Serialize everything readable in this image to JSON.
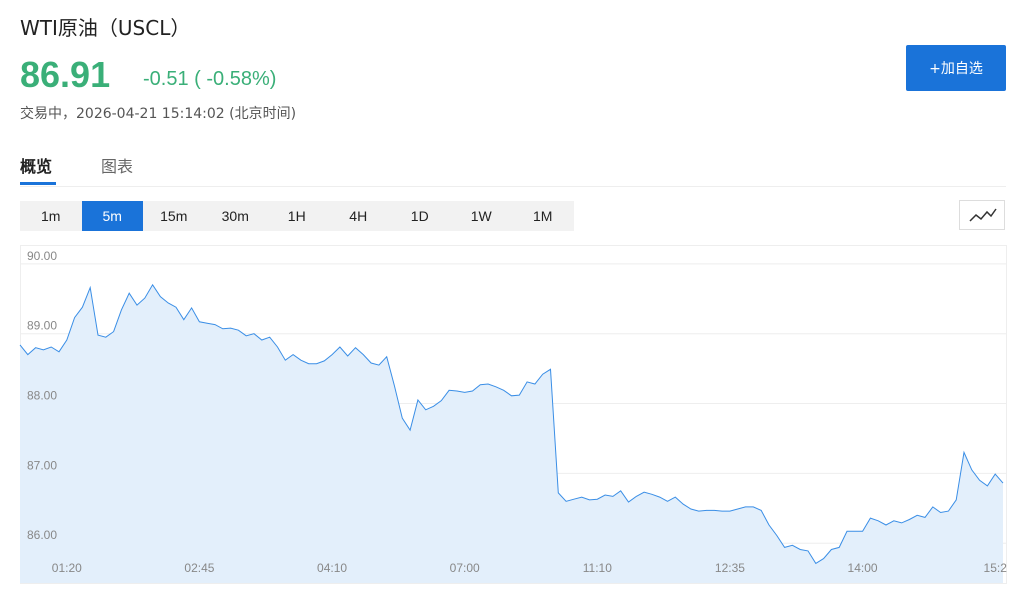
{
  "header": {
    "title": "WTI原油（USCL）",
    "price": "86.91",
    "change": "-0.51 ( -0.58%)",
    "status": "交易中，2026-04-21 15:14:02 (北京时间)"
  },
  "add_button": "+加自选",
  "tabs": [
    "概览",
    "图表"
  ],
  "intervals": [
    "1m",
    "5m",
    "15m",
    "30m",
    "1H",
    "4H",
    "1D",
    "1W",
    "1M"
  ],
  "chart_data": {
    "type": "area",
    "color": "#3a8ee6",
    "fill": "#e3effb",
    "categories": [
      null,
      null,
      null,
      null,
      null,
      null,
      "01:20",
      null,
      null,
      null,
      null,
      null,
      null,
      null,
      null,
      null,
      null,
      null,
      null,
      null,
      null,
      null,
      null,
      "02:45",
      null,
      null,
      null,
      null,
      null,
      null,
      null,
      null,
      null,
      null,
      null,
      null,
      null,
      null,
      null,
      null,
      "04:10",
      null,
      null,
      null,
      null,
      null,
      null,
      null,
      null,
      null,
      null,
      null,
      null,
      null,
      null,
      null,
      null,
      "07:00",
      null,
      null,
      null,
      null,
      null,
      null,
      null,
      null,
      null,
      null,
      null,
      null,
      null,
      null,
      null,
      null,
      "11:10",
      null,
      null,
      null,
      null,
      null,
      null,
      null,
      null,
      null,
      null,
      null,
      null,
      null,
      null,
      null,
      null,
      "12:35",
      null,
      null,
      null,
      null,
      null,
      null,
      null,
      null,
      null,
      null,
      null,
      null,
      null,
      null,
      null,
      null,
      "14:00",
      null,
      null,
      null,
      null,
      null,
      null,
      null,
      null,
      null,
      null,
      null,
      null,
      null,
      null,
      null,
      null,
      "15:2",
      null
    ],
    "values": [
      88.84,
      88.7,
      88.8,
      88.77,
      88.81,
      88.74,
      88.91,
      89.23,
      89.38,
      89.66,
      88.98,
      88.95,
      89.03,
      89.34,
      89.58,
      89.41,
      89.51,
      89.7,
      89.53,
      89.44,
      89.38,
      89.2,
      89.37,
      89.17,
      89.15,
      89.13,
      89.07,
      89.08,
      89.05,
      88.97,
      89.0,
      88.91,
      88.95,
      88.81,
      88.62,
      88.7,
      88.62,
      88.57,
      88.57,
      88.61,
      88.7,
      88.81,
      88.68,
      88.8,
      88.7,
      88.58,
      88.55,
      88.67,
      88.25,
      87.79,
      87.62,
      88.05,
      87.91,
      87.96,
      88.04,
      88.19,
      88.18,
      88.16,
      88.18,
      88.27,
      88.28,
      88.24,
      88.19,
      88.11,
      88.12,
      88.31,
      88.28,
      88.42,
      88.49,
      86.72,
      86.6,
      86.63,
      86.66,
      86.62,
      86.63,
      86.69,
      86.67,
      86.75,
      86.59,
      86.67,
      86.73,
      86.7,
      86.66,
      86.6,
      86.66,
      86.56,
      86.49,
      86.46,
      86.47,
      86.47,
      86.46,
      86.46,
      86.49,
      86.52,
      86.52,
      86.47,
      86.26,
      86.11,
      85.94,
      85.97,
      85.91,
      85.89,
      85.71,
      85.78,
      85.91,
      85.94,
      86.17,
      86.17,
      86.17,
      86.36,
      86.32,
      86.26,
      86.32,
      86.29,
      86.34,
      86.4,
      86.37,
      86.52,
      86.44,
      86.46,
      86.62,
      87.3,
      87.05,
      86.9,
      86.82,
      86.99,
      86.86
    ],
    "ylim": [
      85.43,
      90.27
    ],
    "yticks": [
      {
        "value": 86,
        "label": "86.00"
      },
      {
        "value": 87,
        "label": "87.00"
      },
      {
        "value": 88,
        "label": "88.00"
      },
      {
        "value": 89,
        "label": "89.00"
      },
      {
        "value": 90,
        "label": "90.00"
      }
    ],
    "grid": true
  }
}
